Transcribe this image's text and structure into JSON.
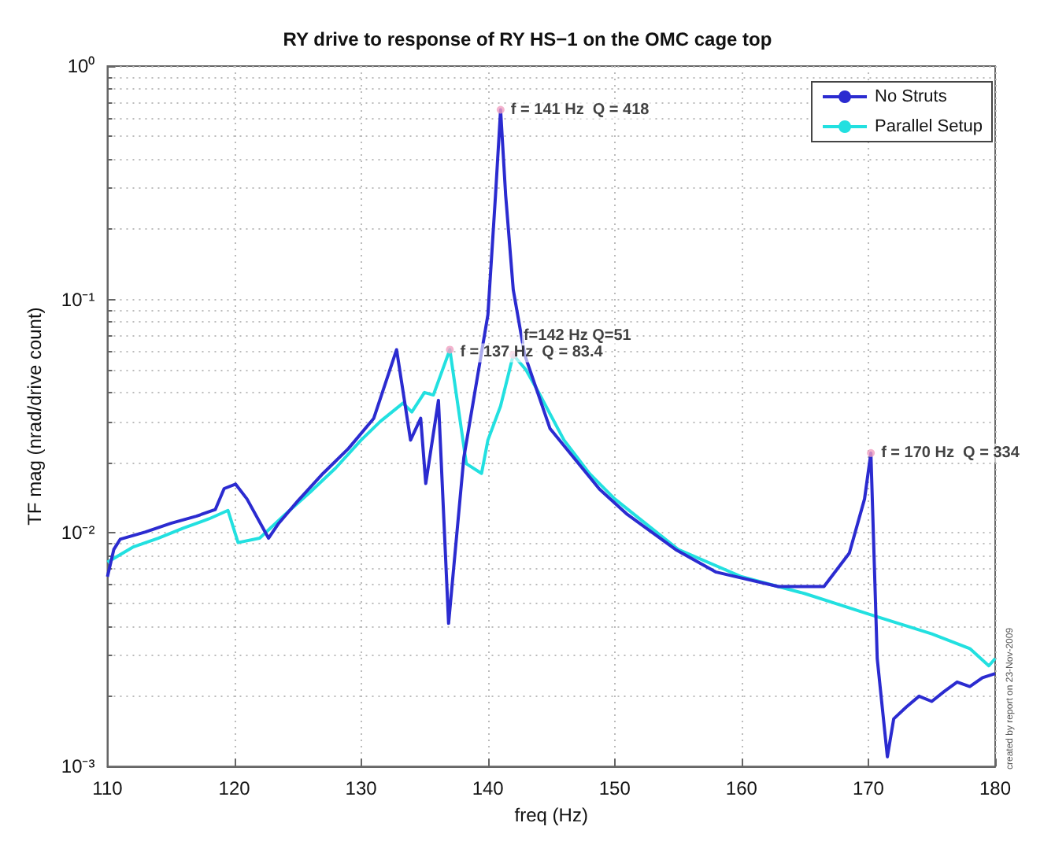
{
  "chart_data": {
    "type": "line",
    "title": "RY drive to response of RY HS−1 on the OMC cage top",
    "xlabel": "freq (Hz)",
    "ylabel": "TF mag (nrad/drive count)",
    "log": "y",
    "grid": true,
    "legend": "top right",
    "marker": "none",
    "line_style": "solid",
    "xlim": [
      110,
      180
    ],
    "xticks": [
      110,
      120,
      130,
      140,
      150,
      160,
      170,
      180
    ],
    "ylim": [
      0.001,
      1
    ],
    "yticks": [
      {
        "value": 0.001,
        "label": "10⁻³"
      },
      {
        "value": 0.01,
        "label": "10⁻²"
      },
      {
        "value": 0.1,
        "label": "10⁻¹"
      },
      {
        "value": 1,
        "label": "10⁰"
      }
    ],
    "series": [
      {
        "name": "No Struts",
        "color": "#2b2bd0",
        "x": [
          110,
          110.5,
          111,
          113,
          115,
          117,
          118.5,
          119.2,
          120.1,
          121,
          122.7,
          123.5,
          125,
          127,
          129,
          131,
          132.8,
          133.9,
          134.7,
          135.1,
          136.1,
          136.9,
          138.1,
          139,
          140,
          140.6,
          141,
          141.4,
          142,
          142.9,
          144.9,
          148.8,
          151,
          154.8,
          158,
          162.9,
          166.5,
          168.5,
          169.7,
          170.2,
          170.7,
          171.5,
          172,
          173,
          174,
          175,
          176,
          177,
          178,
          179,
          180
        ],
        "values": [
          0.0065,
          0.0085,
          0.0094,
          0.0101,
          0.011,
          0.0118,
          0.0126,
          0.0155,
          0.0162,
          0.014,
          0.0095,
          0.011,
          0.0137,
          0.018,
          0.023,
          0.031,
          0.061,
          0.025,
          0.031,
          0.0163,
          0.037,
          0.0041,
          0.021,
          0.041,
          0.086,
          0.28,
          0.65,
          0.28,
          0.11,
          0.058,
          0.028,
          0.0154,
          0.012,
          0.0085,
          0.0068,
          0.0059,
          0.0059,
          0.0082,
          0.014,
          0.022,
          0.0029,
          0.0011,
          0.0016,
          0.0018,
          0.002,
          0.0019,
          0.0021,
          0.0023,
          0.0022,
          0.0024,
          0.0025
        ]
      },
      {
        "name": "Parallel Setup",
        "color": "#22e0e0",
        "x": [
          110,
          112,
          114,
          116,
          118,
          119.5,
          120.3,
          122,
          124,
          126,
          128,
          130,
          131.5,
          133.3,
          134,
          135,
          135.7,
          137,
          138.3,
          139.5,
          140,
          141,
          142,
          143,
          144,
          146,
          148,
          150,
          155,
          160,
          165,
          170,
          175,
          178,
          179.5,
          180
        ],
        "values": [
          0.0075,
          0.0087,
          0.0095,
          0.0105,
          0.0115,
          0.0125,
          0.0091,
          0.0095,
          0.012,
          0.015,
          0.019,
          0.025,
          0.03,
          0.036,
          0.033,
          0.04,
          0.039,
          0.061,
          0.0198,
          0.018,
          0.025,
          0.035,
          0.058,
          0.05,
          0.04,
          0.025,
          0.018,
          0.014,
          0.0085,
          0.0065,
          0.0055,
          0.0045,
          0.0037,
          0.0032,
          0.0027,
          0.0029
        ]
      }
    ],
    "annotations": [
      {
        "text": "f = 141 Hz  Q = 418",
        "x": 141,
        "y": 0.65
      },
      {
        "text": "f=142 Hz Q=51",
        "x": 142,
        "y": 0.058
      },
      {
        "text": "f = 137 Hz  Q = 83.4",
        "x": 137,
        "y": 0.061
      },
      {
        "text": "f = 170 Hz  Q = 334",
        "x": 170.2,
        "y": 0.022
      },
      "created by report on 23-Nov-2009"
    ]
  }
}
